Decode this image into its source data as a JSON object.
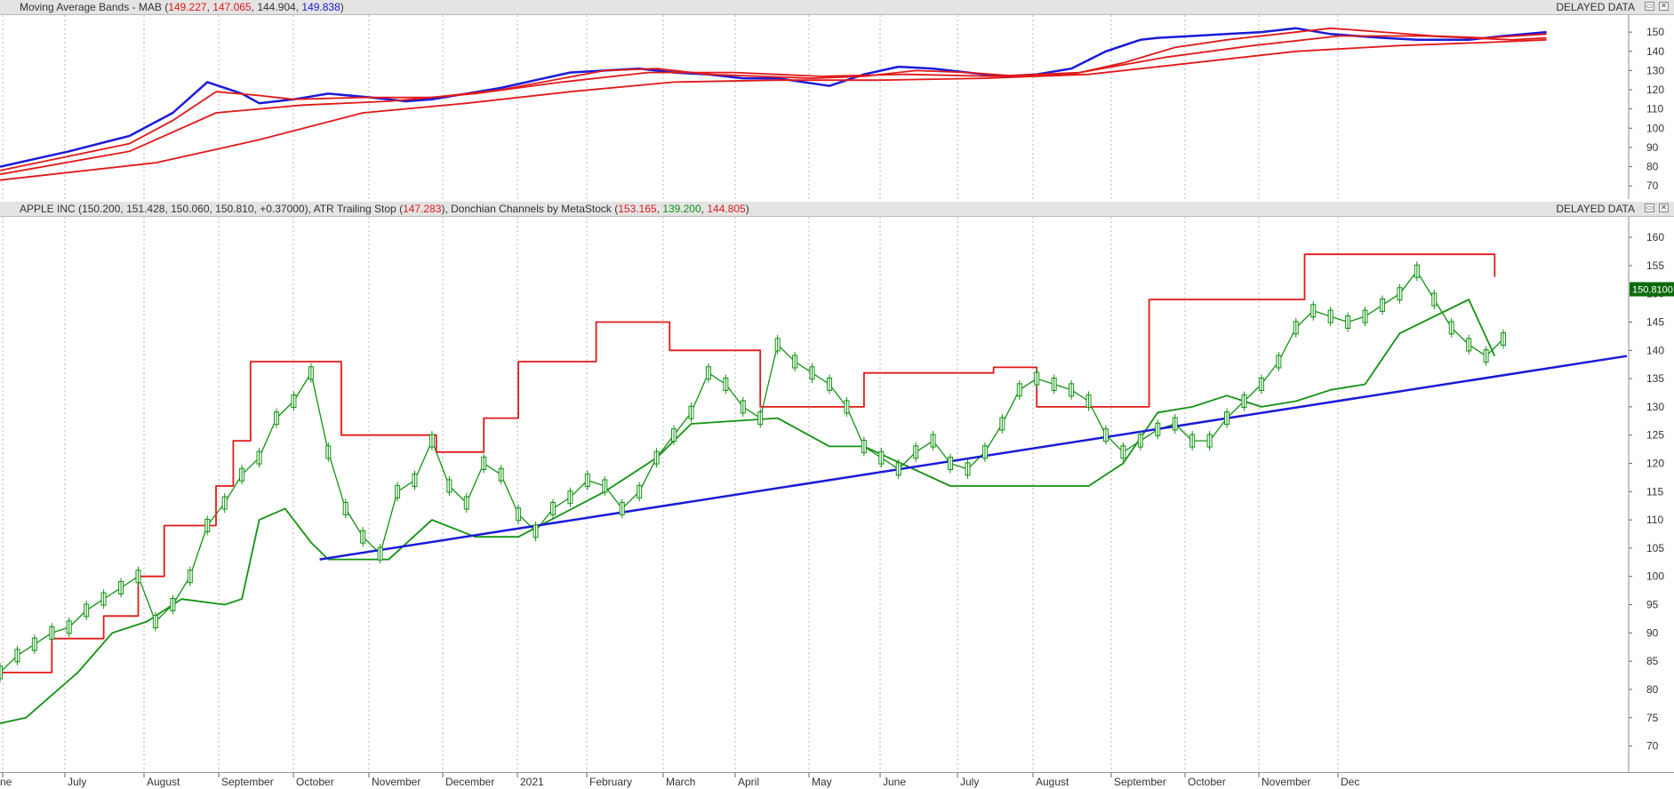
{
  "top_panel": {
    "title_prefix": "Moving Average Bands - MAB (",
    "values": [
      "149.227",
      "147.065",
      "144.904",
      "149.838"
    ],
    "title_suffix": ")",
    "delayed_label": "DELAYED DATA"
  },
  "main_panel": {
    "title_prefix": "APPLE INC (150.200, 151.428, 150.060, 150.810, +0.37000), ATR Trailing Stop (",
    "atr_value": "147.283",
    "mid_text": "), Donchian Channels by MetaStock (",
    "donchian_values": [
      "153.165",
      "139.200",
      "144.805"
    ],
    "title_suffix": ")",
    "delayed_label": "DELAYED DATA",
    "last_price_label": "150.8100"
  },
  "x_axis_labels": [
    "ne",
    "July",
    "August",
    "September",
    "October",
    "November",
    "December",
    "2021",
    "February",
    "March",
    "April",
    "May",
    "June",
    "July",
    "August",
    "September",
    "October",
    "November",
    "Dec"
  ],
  "colors": {
    "red": "#e11919",
    "blue": "#1a1ad8",
    "green": "#129212",
    "dark_red": "#8b0000",
    "bright_green": "#22cc22"
  },
  "chart_data": [
    {
      "type": "line",
      "title": "Moving Average Bands - MAB",
      "x_range": [
        0,
        1883
      ],
      "ylim": [
        65,
        157
      ],
      "y_ticks": [
        70,
        80,
        90,
        100,
        110,
        120,
        130,
        140,
        150
      ],
      "series": [
        {
          "name": "149.838",
          "color": "#1a1ad8",
          "x": [
            0,
            80,
            150,
            200,
            240,
            280,
            300,
            340,
            380,
            430,
            470,
            500,
            540,
            580,
            620,
            660,
            700,
            740,
            780,
            820,
            860,
            900,
            960,
            1000,
            1040,
            1080,
            1120,
            1160,
            1200,
            1240,
            1280,
            1320,
            1340,
            1380,
            1420,
            1460,
            1500,
            1540,
            1600,
            1640,
            1700,
            1740,
            1790
          ],
          "values": [
            80,
            88,
            96,
            108,
            124,
            118,
            113,
            115,
            118,
            116,
            114,
            115,
            118,
            121,
            125,
            129,
            130,
            131,
            129,
            128,
            126,
            126,
            122,
            128,
            132,
            131,
            129,
            127,
            128,
            131,
            140,
            146,
            147,
            148,
            149,
            150,
            152,
            149,
            147,
            146,
            146,
            148,
            150
          ]
        },
        {
          "name": "149.227",
          "color": "#e11919",
          "x": [
            0,
            150,
            200,
            250,
            300,
            340,
            420,
            500,
            580,
            640,
            700,
            760,
            820,
            880,
            940,
            1000,
            1060,
            1120,
            1180,
            1240,
            1300,
            1360,
            1420,
            1480,
            1540,
            1600,
            1660,
            1720,
            1790
          ],
          "values": [
            78,
            92,
            104,
            119,
            117,
            115,
            116,
            116,
            120,
            125,
            130,
            131,
            128,
            127,
            126,
            127,
            130,
            129,
            127,
            128,
            134,
            142,
            146,
            149,
            152,
            150,
            148,
            147,
            149
          ]
        },
        {
          "name": "147.065",
          "color": "#e11919",
          "x": [
            0,
            150,
            250,
            350,
            450,
            550,
            650,
            750,
            850,
            950,
            1050,
            1150,
            1250,
            1350,
            1450,
            1550,
            1650,
            1750,
            1790
          ],
          "values": [
            76,
            88,
            108,
            112,
            114,
            118,
            124,
            129,
            129,
            127,
            128,
            127,
            129,
            137,
            143,
            148,
            148,
            146,
            147
          ]
        },
        {
          "name": "144.904",
          "color": "#e11919",
          "x": [
            0,
            180,
            300,
            420,
            540,
            660,
            780,
            900,
            1020,
            1140,
            1260,
            1380,
            1500,
            1620,
            1740,
            1790
          ],
          "values": [
            73,
            82,
            94,
            108,
            113,
            119,
            124,
            125,
            125,
            126,
            128,
            134,
            140,
            143,
            145,
            146
          ]
        }
      ]
    },
    {
      "type": "line",
      "title": "APPLE INC",
      "x_range": [
        0,
        1883
      ],
      "ylim": [
        66,
        163
      ],
      "y_ticks": [
        70,
        75,
        80,
        85,
        90,
        95,
        100,
        105,
        110,
        115,
        120,
        125,
        130,
        135,
        140,
        145,
        150,
        155,
        160
      ],
      "series": [
        {
          "name": "APPLE INC",
          "color": "#129212",
          "x": [
            0,
            20,
            40,
            60,
            80,
            100,
            120,
            140,
            160,
            180,
            200,
            220,
            240,
            260,
            280,
            300,
            320,
            340,
            360,
            380,
            400,
            420,
            440,
            460,
            480,
            500,
            520,
            540,
            560,
            580,
            600,
            620,
            640,
            660,
            680,
            700,
            720,
            740,
            760,
            780,
            800,
            820,
            840,
            860,
            880,
            900,
            920,
            940,
            960,
            980,
            1000,
            1020,
            1040,
            1060,
            1080,
            1100,
            1120,
            1140,
            1160,
            1180,
            1200,
            1220,
            1240,
            1260,
            1280,
            1300,
            1320,
            1340,
            1360,
            1380,
            1400,
            1420,
            1440,
            1460,
            1480,
            1500,
            1520,
            1540,
            1560,
            1580,
            1600,
            1620,
            1640,
            1660,
            1680,
            1700,
            1720,
            1740
          ],
          "values": [
            83,
            86,
            88,
            90,
            91,
            94,
            96,
            98,
            100,
            92,
            95,
            100,
            109,
            113,
            118,
            121,
            128,
            131,
            136,
            122,
            112,
            107,
            104,
            115,
            117,
            124,
            116,
            113,
            120,
            118,
            111,
            108,
            112,
            114,
            117,
            116,
            112,
            115,
            121,
            125,
            129,
            136,
            134,
            130,
            128,
            141,
            138,
            136,
            134,
            130,
            123,
            121,
            119,
            122,
            124,
            120,
            119,
            122,
            127,
            133,
            135,
            134,
            133,
            131,
            125,
            122,
            124,
            126,
            127,
            124,
            124,
            128,
            131,
            134,
            138,
            144,
            147,
            146,
            145,
            146,
            148,
            150,
            154,
            149,
            144,
            141,
            139,
            142
          ]
        },
        {
          "name": "Donchian upper",
          "color": "#e11919",
          "x": [
            0,
            60,
            60,
            120,
            120,
            160,
            160,
            190,
            190,
            250,
            250,
            270,
            270,
            290,
            290,
            395,
            395,
            430,
            430,
            505,
            505,
            560,
            560,
            600,
            600,
            690,
            690,
            775,
            775,
            880,
            880,
            1000,
            1000,
            1150,
            1150,
            1200,
            1200,
            1330,
            1330,
            1510,
            1510,
            1730,
            1730
          ],
          "values": [
            83,
            83,
            89,
            89,
            93,
            93,
            100,
            100,
            109,
            109,
            116,
            116,
            124,
            124,
            138,
            138,
            125,
            125,
            125,
            125,
            122,
            122,
            128,
            128,
            138,
            138,
            145,
            145,
            140,
            140,
            130,
            130,
            136,
            136,
            137,
            137,
            130,
            130,
            149,
            149,
            157,
            157,
            153
          ]
        },
        {
          "name": "Donchian lower",
          "color": "#129212",
          "x": [
            0,
            30,
            60,
            90,
            130,
            170,
            210,
            260,
            280,
            300,
            330,
            360,
            380,
            450,
            500,
            550,
            600,
            700,
            760,
            800,
            900,
            960,
            1000,
            1100,
            1200,
            1260,
            1300,
            1340,
            1380,
            1420,
            1460,
            1500,
            1540,
            1580,
            1620,
            1700,
            1730
          ],
          "values": [
            74,
            75,
            79,
            83,
            90,
            92,
            96,
            95,
            96,
            110,
            112,
            106,
            103,
            103,
            110,
            107,
            107,
            115,
            121,
            127,
            128,
            123,
            123,
            116,
            116,
            116,
            120,
            129,
            130,
            132,
            130,
            131,
            133,
            134,
            143,
            149,
            139
          ]
        },
        {
          "name": "Trendline",
          "color": "#1a1ad8",
          "x": [
            370,
            1883
          ],
          "values": [
            103,
            139
          ]
        }
      ]
    }
  ]
}
